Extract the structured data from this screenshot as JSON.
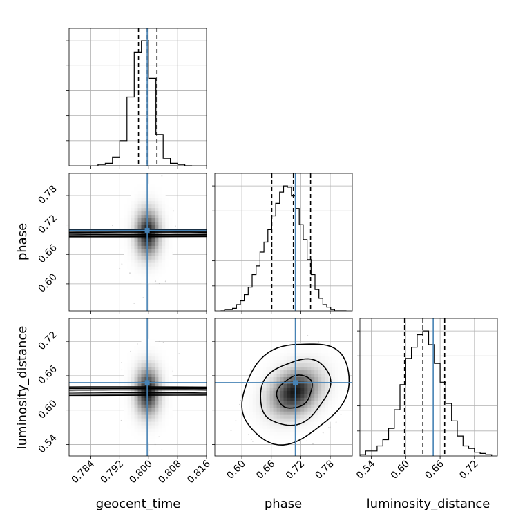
{
  "chart_data": {
    "type": "corner",
    "parameters": [
      "geocent_time",
      "phase",
      "luminosity_distance"
    ],
    "axis_labels": {
      "x": [
        "geocent_time",
        "phase",
        "luminosity_distance"
      ],
      "y": [
        "phase",
        "luminosity_distance"
      ]
    },
    "ranges": {
      "geocent_time": [
        0.778,
        0.816
      ],
      "phase": [
        0.545,
        0.825
      ],
      "luminosity_distance": [
        0.52,
        0.76
      ]
    },
    "ticks": {
      "geocent_time": [
        0.784,
        0.792,
        0.8,
        0.808,
        0.816
      ],
      "phase": [
        0.6,
        0.66,
        0.72,
        0.78
      ],
      "luminosity_distance": [
        0.54,
        0.6,
        0.66,
        0.72
      ]
    },
    "tick_labels": {
      "geocent_time": [
        "0.784",
        "0.792",
        "0.800",
        "0.808",
        "0.816"
      ],
      "phase": [
        "0.60",
        "0.66",
        "0.72",
        "0.78"
      ],
      "luminosity_distance": [
        "0.54",
        "0.60",
        "0.66",
        "0.72"
      ]
    },
    "truths": {
      "geocent_time": 0.7996,
      "phase": 0.709,
      "luminosity_distance": 0.648
    },
    "quantiles": {
      "geocent_time": [
        0.7972,
        0.7996,
        0.8023
      ],
      "phase": [
        0.661,
        0.705,
        0.74
      ],
      "luminosity_distance": [
        0.598,
        0.63,
        0.668
      ]
    },
    "histograms": {
      "geocent_time": {
        "edges": [
          0.786,
          0.788,
          0.79,
          0.792,
          0.794,
          0.796,
          0.798,
          0.8,
          0.802,
          0.804,
          0.806,
          0.808,
          0.81,
          0.812
        ],
        "counts": [
          0.01,
          0.02,
          0.07,
          0.2,
          0.55,
          0.91,
          1.0,
          0.7,
          0.25,
          0.06,
          0.02,
          0.01,
          0.0
        ]
      },
      "phase": {
        "edges": [
          0.557,
          0.565,
          0.573,
          0.581,
          0.589,
          0.597,
          0.605,
          0.613,
          0.621,
          0.629,
          0.637,
          0.645,
          0.653,
          0.661,
          0.669,
          0.677,
          0.685,
          0.693,
          0.701,
          0.709,
          0.717,
          0.725,
          0.733,
          0.741,
          0.749,
          0.757,
          0.765,
          0.773,
          0.781,
          0.789,
          0.797,
          0.805,
          0.813
        ],
        "counts": [
          0.0,
          0.01,
          0.01,
          0.02,
          0.05,
          0.08,
          0.13,
          0.19,
          0.29,
          0.36,
          0.47,
          0.55,
          0.65,
          0.76,
          0.86,
          0.95,
          1.0,
          0.99,
          0.92,
          0.82,
          0.69,
          0.57,
          0.41,
          0.29,
          0.17,
          0.1,
          0.05,
          0.03,
          0.01,
          0.0,
          0.0,
          0.0
        ]
      },
      "luminosity_distance": {
        "edges": [
          0.52,
          0.53,
          0.54,
          0.55,
          0.56,
          0.57,
          0.58,
          0.59,
          0.6,
          0.61,
          0.62,
          0.63,
          0.64,
          0.65,
          0.66,
          0.67,
          0.68,
          0.69,
          0.7,
          0.71,
          0.72,
          0.73,
          0.74,
          0.75
        ],
        "counts": [
          0.01,
          0.04,
          0.04,
          0.08,
          0.13,
          0.22,
          0.37,
          0.57,
          0.78,
          0.87,
          0.97,
          1.0,
          0.89,
          0.74,
          0.59,
          0.42,
          0.28,
          0.16,
          0.08,
          0.06,
          0.03,
          0.02,
          0.01
        ]
      }
    },
    "joint_2d": [
      {
        "x": "geocent_time",
        "y": "phase",
        "mean": [
          0.7997,
          0.703
        ],
        "sd": [
          0.0024,
          0.034
        ],
        "rho": 0.0
      },
      {
        "x": "geocent_time",
        "y": "luminosity_distance",
        "mean": [
          0.7997,
          0.633
        ],
        "sd": [
          0.0024,
          0.03
        ],
        "rho": 0.0
      },
      {
        "x": "phase",
        "y": "luminosity_distance",
        "mean": [
          0.708,
          0.632
        ],
        "sd": [
          0.036,
          0.029
        ],
        "rho": 0.25
      }
    ],
    "contour_levels": [
      0.39,
      0.86,
      0.99
    ],
    "grid": true,
    "colors": {
      "truth": "#4682b4",
      "hist": "#000000",
      "quantile": "#000000",
      "grid": "#b0b0b0",
      "points": "#808080"
    }
  }
}
